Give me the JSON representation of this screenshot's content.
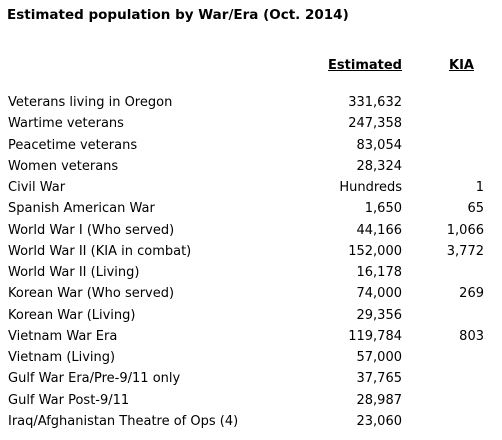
{
  "title": "Estimated population by War/Era (Oct. 2014)",
  "table": {
    "header": {
      "estimated": "Estimated",
      "kia": "KIA"
    },
    "rows": [
      {
        "label": "Veterans living in Oregon",
        "estimated": "331,632"
      },
      {
        "label": "Wartime veterans",
        "estimated": "247,358"
      },
      {
        "label": "Peacetime veterans",
        "estimated": "83,054"
      },
      {
        "label": "Women veterans",
        "estimated": "28,324"
      },
      {
        "label": "Civil War",
        "estimated": "Hundreds",
        "kia": "1"
      },
      {
        "label": "Spanish American War",
        "estimated": "1,650",
        "kia": "65"
      },
      {
        "label": "World War I (Who served)",
        "estimated": "44,166",
        "kia": "1,066"
      },
      {
        "label": "World War II (KIA in combat)",
        "estimated": "152,000",
        "kia": "3,772"
      },
      {
        "label": "World War II (Living)",
        "estimated": "16,178"
      },
      {
        "label": "Korean War (Who served)",
        "estimated": "74,000",
        "kia": "269"
      },
      {
        "label": "Korean War (Living)",
        "estimated": "29,356"
      },
      {
        "label": "Vietnam War Era",
        "estimated": "119,784",
        "kia": "803"
      },
      {
        "label": "Vietnam (Living)",
        "estimated": "57,000"
      },
      {
        "label": "Gulf War Era/Pre-9/11 only",
        "estimated": "37,765"
      },
      {
        "label": "Gulf War Post-9/11",
        "estimated": "28,987"
      },
      {
        "label": "Iraq/Afghanistan Theatre of Ops (4)",
        "estimated": "23,060"
      }
    ]
  }
}
